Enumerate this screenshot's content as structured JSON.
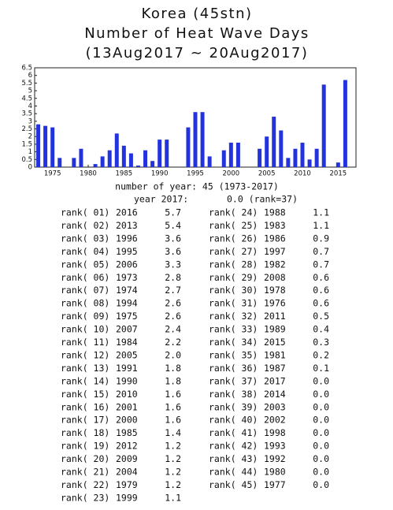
{
  "chart_data": {
    "type": "bar",
    "title": "Korea (45stn)",
    "subtitle": "Number of Heat Wave Days",
    "period": "(13Aug2017 ~ 20Aug2017)",
    "x": [
      1973,
      1974,
      1975,
      1976,
      1977,
      1978,
      1979,
      1980,
      1981,
      1982,
      1983,
      1984,
      1985,
      1986,
      1987,
      1988,
      1989,
      1990,
      1991,
      1992,
      1993,
      1994,
      1995,
      1996,
      1997,
      1998,
      1999,
      2000,
      2001,
      2002,
      2003,
      2004,
      2005,
      2006,
      2007,
      2008,
      2009,
      2010,
      2011,
      2012,
      2013,
      2014,
      2015,
      2016,
      2017
    ],
    "values": [
      2.8,
      2.7,
      2.6,
      0.6,
      0.0,
      0.6,
      1.2,
      0.0,
      0.2,
      0.7,
      1.1,
      2.2,
      1.4,
      0.9,
      0.1,
      1.1,
      0.4,
      1.8,
      1.8,
      0.0,
      0.0,
      2.6,
      3.6,
      3.6,
      0.7,
      0.0,
      1.1,
      1.6,
      1.6,
      0.0,
      0.0,
      1.2,
      2.0,
      3.3,
      2.4,
      0.6,
      1.2,
      1.6,
      0.5,
      1.2,
      5.4,
      0.0,
      0.3,
      5.7,
      0.0
    ],
    "color": "#2233dd",
    "xlim": [
      1972.5,
      2017.5
    ],
    "xticks": [
      1975,
      1980,
      1985,
      1990,
      1995,
      2000,
      2005,
      2010,
      2015
    ],
    "ylim": [
      0,
      6.5
    ],
    "yticks": [
      0,
      0.5,
      1,
      1.5,
      2,
      2.5,
      3,
      3.5,
      4,
      4.5,
      5,
      5.5,
      6,
      6.5
    ],
    "grid": false
  },
  "summary": {
    "count_line": "number of year: 45  (1973-2017)",
    "year_label": "year 2017:",
    "year_value": "0.0 (rank=37)"
  },
  "ranking": {
    "rows": [
      [
        "rank( 01)",
        "2016",
        "5.7"
      ],
      [
        "rank( 02)",
        "2013",
        "5.4"
      ],
      [
        "rank( 03)",
        "1996",
        "3.6"
      ],
      [
        "rank( 04)",
        "1995",
        "3.6"
      ],
      [
        "rank( 05)",
        "2006",
        "3.3"
      ],
      [
        "rank( 06)",
        "1973",
        "2.8"
      ],
      [
        "rank( 07)",
        "1974",
        "2.7"
      ],
      [
        "rank( 08)",
        "1994",
        "2.6"
      ],
      [
        "rank( 09)",
        "1975",
        "2.6"
      ],
      [
        "rank( 10)",
        "2007",
        "2.4"
      ],
      [
        "rank( 11)",
        "1984",
        "2.2"
      ],
      [
        "rank( 12)",
        "2005",
        "2.0"
      ],
      [
        "rank( 13)",
        "1991",
        "1.8"
      ],
      [
        "rank( 14)",
        "1990",
        "1.8"
      ],
      [
        "rank( 15)",
        "2010",
        "1.6"
      ],
      [
        "rank( 16)",
        "2001",
        "1.6"
      ],
      [
        "rank( 17)",
        "2000",
        "1.6"
      ],
      [
        "rank( 18)",
        "1985",
        "1.4"
      ],
      [
        "rank( 19)",
        "2012",
        "1.2"
      ],
      [
        "rank( 20)",
        "2009",
        "1.2"
      ],
      [
        "rank( 21)",
        "2004",
        "1.2"
      ],
      [
        "rank( 22)",
        "1979",
        "1.2"
      ],
      [
        "rank( 23)",
        "1999",
        "1.1"
      ],
      [
        "rank( 24)",
        "1988",
        "1.1"
      ],
      [
        "rank( 25)",
        "1983",
        "1.1"
      ],
      [
        "rank( 26)",
        "1986",
        "0.9"
      ],
      [
        "rank( 27)",
        "1997",
        "0.7"
      ],
      [
        "rank( 28)",
        "1982",
        "0.7"
      ],
      [
        "rank( 29)",
        "2008",
        "0.6"
      ],
      [
        "rank( 30)",
        "1978",
        "0.6"
      ],
      [
        "rank( 31)",
        "1976",
        "0.6"
      ],
      [
        "rank( 32)",
        "2011",
        "0.5"
      ],
      [
        "rank( 33)",
        "1989",
        "0.4"
      ],
      [
        "rank( 34)",
        "2015",
        "0.3"
      ],
      [
        "rank( 35)",
        "1981",
        "0.2"
      ],
      [
        "rank( 36)",
        "1987",
        "0.1"
      ],
      [
        "rank( 37)",
        "2017",
        "0.0"
      ],
      [
        "rank( 38)",
        "2014",
        "0.0"
      ],
      [
        "rank( 39)",
        "2003",
        "0.0"
      ],
      [
        "rank( 40)",
        "2002",
        "0.0"
      ],
      [
        "rank( 41)",
        "1998",
        "0.0"
      ],
      [
        "rank( 42)",
        "1993",
        "0.0"
      ],
      [
        "rank( 43)",
        "1992",
        "0.0"
      ],
      [
        "rank( 44)",
        "1980",
        "0.0"
      ],
      [
        "rank( 45)",
        "1977",
        "0.0"
      ]
    ]
  }
}
